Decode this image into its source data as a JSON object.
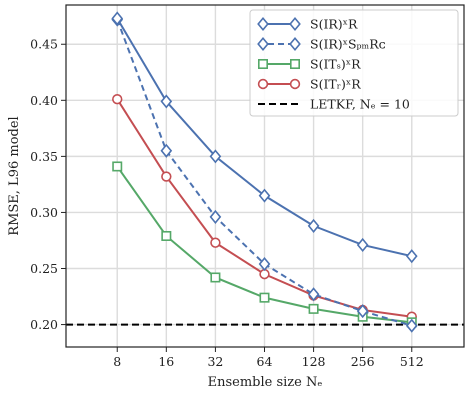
{
  "chart_data": {
    "type": "line",
    "xlabel": "Ensemble size Nₑ",
    "ylabel": "RMSE, L96 model",
    "x_scale": "log2",
    "x": [
      8,
      16,
      32,
      64,
      128,
      256,
      512
    ],
    "x_tick_labels": [
      "8",
      "16",
      "32",
      "64",
      "128",
      "256",
      "512"
    ],
    "ylim": [
      0.18,
      0.485
    ],
    "y_ticks": [
      0.2,
      0.25,
      0.3,
      0.35,
      0.4,
      0.45
    ],
    "y_tick_labels": [
      "0.20",
      "0.25",
      "0.30",
      "0.35",
      "0.40",
      "0.45"
    ],
    "grid": true,
    "legend_position": "top-right",
    "series": [
      {
        "name": "S(IR)ˣR",
        "color": "#4c72b0",
        "marker": "diamond",
        "linestyle": "solid",
        "values": [
          0.473,
          0.399,
          0.35,
          0.315,
          0.288,
          0.271,
          0.261
        ]
      },
      {
        "name": "S(IR)ˣSₚₘRᴄ",
        "color": "#4c72b0",
        "marker": "diamond",
        "linestyle": "dashed",
        "values": [
          0.472,
          0.355,
          0.296,
          0.254,
          0.227,
          0.212,
          0.199
        ]
      },
      {
        "name": "S(ITₛ)ˣR",
        "color": "#55a868",
        "marker": "square",
        "linestyle": "solid",
        "values": [
          0.341,
          0.279,
          0.242,
          0.224,
          0.214,
          0.207,
          0.202
        ]
      },
      {
        "name": "S(ITᵣ)ˣR",
        "color": "#c44e52",
        "marker": "circle",
        "linestyle": "solid",
        "values": [
          0.401,
          0.332,
          0.273,
          0.245,
          0.226,
          0.213,
          0.207
        ]
      }
    ],
    "reference_lines": [
      {
        "name": "LETKF, Nₑ = 10",
        "y": 0.2,
        "color": "#000000",
        "linestyle": "dashed"
      }
    ]
  }
}
